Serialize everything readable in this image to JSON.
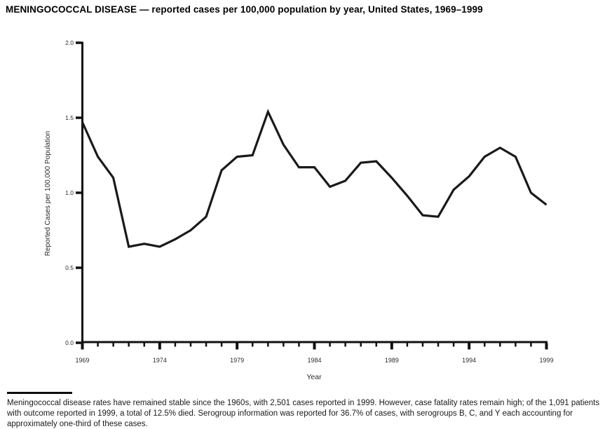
{
  "title": "MENINGOCOCCAL DISEASE — reported cases per 100,000 population by year, United States, 1969–1999",
  "chart_data": {
    "type": "line",
    "title": "MENINGOCOCCAL DISEASE — reported cases per 100,000 population by year, United States, 1969–1999",
    "xlabel": "Year",
    "ylabel": "Reported Cases per 100,000 Population",
    "x": [
      1969,
      1970,
      1971,
      1972,
      1973,
      1974,
      1975,
      1976,
      1977,
      1978,
      1979,
      1980,
      1981,
      1982,
      1983,
      1984,
      1985,
      1986,
      1987,
      1988,
      1989,
      1990,
      1991,
      1992,
      1993,
      1994,
      1995,
      1996,
      1997,
      1998,
      1999
    ],
    "values": [
      1.47,
      1.24,
      1.1,
      0.64,
      0.66,
      0.64,
      0.69,
      0.75,
      0.84,
      1.15,
      1.24,
      1.25,
      1.54,
      1.32,
      1.17,
      1.17,
      1.04,
      1.08,
      1.2,
      1.21,
      1.1,
      0.98,
      0.85,
      0.84,
      1.02,
      1.11,
      1.24,
      1.3,
      1.24,
      1.0,
      0.92
    ],
    "ylim": [
      0.0,
      2.0
    ],
    "yticks": [
      0.0,
      0.5,
      1.0,
      1.5,
      2.0
    ],
    "ytick_labels": [
      "0.0",
      "0.5",
      "1.0",
      "1.5",
      "2.0"
    ],
    "xticks_major": [
      1969,
      1974,
      1979,
      1984,
      1989,
      1994,
      1999
    ],
    "xtick_labels": [
      "1969",
      "1974",
      "1979",
      "1984",
      "1989",
      "1994",
      "1999"
    ],
    "grid": false,
    "legend_position": "none",
    "line_color": "#1a1a1a",
    "axis_color": "#111111",
    "tick_label_color": "#2b2b2b"
  },
  "footnote": {
    "lines": [
      "Meningococcal disease rates have remained stable since the 1960s, with 2,501 cases reported in 1999. However, case fatality rates remain high; of the 1,091 patients",
      "with outcome reported in 1999, a total of 12.5% died. Serogroup information was reported for 36.7% of cases, with serogroups B, C, and Y each accounting for",
      "approximately one-third of these cases."
    ]
  }
}
